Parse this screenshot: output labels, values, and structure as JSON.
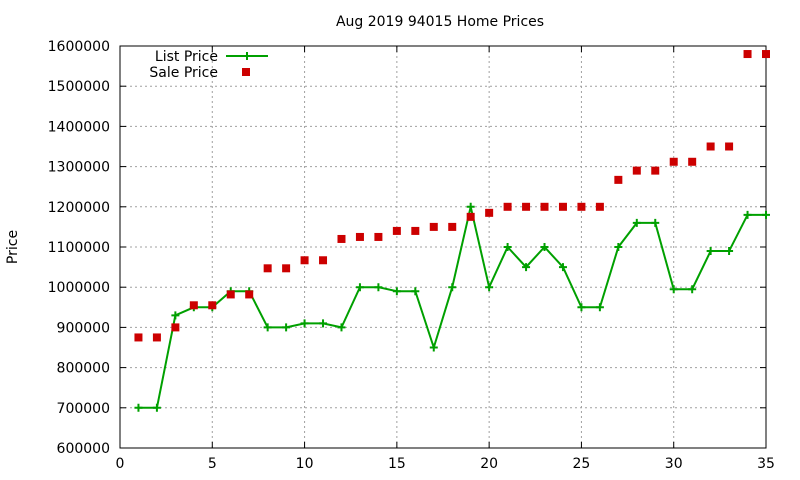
{
  "chart_data": {
    "type": "line",
    "title": "Aug 2019 94015 Home Prices",
    "xlabel": "",
    "ylabel": "Price",
    "xlim": [
      0,
      35
    ],
    "ylim": [
      600000,
      1600000
    ],
    "xticks": [
      "0",
      "5",
      "10",
      "15",
      "20",
      "25",
      "30",
      "35"
    ],
    "yticks": [
      "600000",
      "700000",
      "800000",
      "900000",
      "1000000",
      "1100000",
      "1200000",
      "1300000",
      "1400000",
      "1500000",
      "1600000"
    ],
    "grid": true,
    "legend_position": "top-left",
    "series": [
      {
        "name": "List Price",
        "style": "line+cross",
        "color": "#00a000",
        "points": [
          [
            1,
            700000
          ],
          [
            2,
            700000
          ],
          [
            3,
            930000
          ],
          [
            4,
            950000
          ],
          [
            5,
            950000
          ],
          [
            6,
            990000
          ],
          [
            7,
            990000
          ],
          [
            8,
            900000
          ],
          [
            9,
            900000
          ],
          [
            10,
            910000
          ],
          [
            11,
            910000
          ],
          [
            12,
            900000
          ],
          [
            13,
            1000000
          ],
          [
            14,
            1000000
          ],
          [
            15,
            990000
          ],
          [
            16,
            990000
          ],
          [
            17,
            850000
          ],
          [
            18,
            1000000
          ],
          [
            19,
            1200000
          ],
          [
            20,
            1000000
          ],
          [
            21,
            1100000
          ],
          [
            22,
            1050000
          ],
          [
            23,
            1100000
          ],
          [
            24,
            1050000
          ],
          [
            25,
            950000
          ],
          [
            26,
            950000
          ],
          [
            27,
            1100000
          ],
          [
            28,
            1160000
          ],
          [
            29,
            1160000
          ],
          [
            30,
            995000
          ],
          [
            31,
            995000
          ],
          [
            32,
            1090000
          ],
          [
            33,
            1090000
          ],
          [
            34,
            1180000
          ],
          [
            35,
            1180000
          ]
        ]
      },
      {
        "name": "Sale Price",
        "style": "square",
        "color": "#cc0000",
        "points": [
          [
            1,
            875000
          ],
          [
            2,
            875000
          ],
          [
            3,
            900000
          ],
          [
            4,
            955000
          ],
          [
            5,
            955000
          ],
          [
            6,
            982000
          ],
          [
            7,
            982000
          ],
          [
            8,
            1047000
          ],
          [
            9,
            1047000
          ],
          [
            10,
            1067000
          ],
          [
            11,
            1067000
          ],
          [
            12,
            1120000
          ],
          [
            13,
            1125000
          ],
          [
            14,
            1125000
          ],
          [
            15,
            1140000
          ],
          [
            16,
            1140000
          ],
          [
            17,
            1150000
          ],
          [
            18,
            1150000
          ],
          [
            19,
            1175000
          ],
          [
            20,
            1185000
          ],
          [
            21,
            1200000
          ],
          [
            22,
            1200000
          ],
          [
            23,
            1200000
          ],
          [
            24,
            1200000
          ],
          [
            25,
            1200000
          ],
          [
            26,
            1200000
          ],
          [
            27,
            1267000
          ],
          [
            28,
            1290000
          ],
          [
            29,
            1290000
          ],
          [
            30,
            1312000
          ],
          [
            31,
            1312000
          ],
          [
            32,
            1350000
          ],
          [
            33,
            1350000
          ],
          [
            34,
            1580000
          ],
          [
            35,
            1580000
          ]
        ]
      }
    ]
  }
}
